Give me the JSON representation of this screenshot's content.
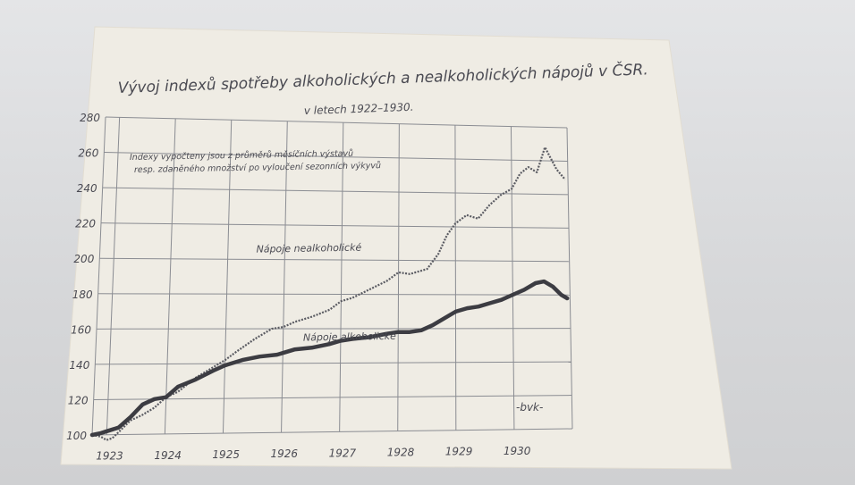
{
  "chart_data": {
    "type": "line",
    "title": "Vývoj indexů spotřeby alkoholických a nealkoholických nápojů v ČSR.",
    "subtitle": "v letech 1922–1930.",
    "note": [
      "Indexy vypočteny jsou z průměrů měsíčních výstavů",
      "resp. zdaněného množství po vyloučení sezonních výkyvů"
    ],
    "signature": "-bvk-",
    "xlabel": "",
    "ylabel": "",
    "x_ticks": [
      "1923",
      "1924",
      "1925",
      "1926",
      "1927",
      "1928",
      "1929",
      "1930"
    ],
    "y_ticks": [
      "100",
      "120",
      "140",
      "160",
      "180",
      "200",
      "220",
      "240",
      "260",
      "280"
    ],
    "xlim": [
      1922.75,
      1931.0
    ],
    "ylim": [
      100,
      280
    ],
    "grid": true,
    "series": [
      {
        "name": "Nápoje nealkoholické",
        "style": "dotted",
        "x": [
          1922.75,
          1922.9,
          1923.0,
          1923.1,
          1923.25,
          1923.4,
          1923.6,
          1923.8,
          1924.0,
          1924.2,
          1924.5,
          1924.8,
          1925.0,
          1925.2,
          1925.5,
          1925.8,
          1926.0,
          1926.2,
          1926.5,
          1926.8,
          1927.0,
          1927.2,
          1927.5,
          1927.8,
          1928.0,
          1928.2,
          1928.5,
          1928.7,
          1928.85,
          1929.0,
          1929.2,
          1929.4,
          1929.6,
          1929.8,
          1930.0,
          1930.15,
          1930.3,
          1930.45,
          1930.6,
          1930.8,
          1930.95
        ],
        "values": [
          100,
          99,
          97,
          98,
          103,
          108,
          111,
          115,
          121,
          124,
          132,
          138,
          142,
          147,
          154,
          160,
          161,
          164,
          167,
          171,
          176,
          178,
          183,
          188,
          193,
          192,
          195,
          204,
          215,
          222,
          227,
          225,
          233,
          239,
          243,
          252,
          256,
          253,
          268,
          255,
          249
        ]
      },
      {
        "name": "Nápoje alkoholické",
        "style": "solid",
        "x": [
          1922.75,
          1922.9,
          1923.0,
          1923.2,
          1923.4,
          1923.6,
          1923.8,
          1924.0,
          1924.2,
          1924.5,
          1924.8,
          1925.0,
          1925.3,
          1925.6,
          1925.9,
          1926.0,
          1926.2,
          1926.5,
          1926.8,
          1927.0,
          1927.2,
          1927.5,
          1927.8,
          1928.0,
          1928.2,
          1928.4,
          1928.6,
          1928.8,
          1929.0,
          1929.2,
          1929.4,
          1929.6,
          1929.8,
          1930.0,
          1930.2,
          1930.4,
          1930.55,
          1930.7,
          1930.85,
          1930.95
        ],
        "values": [
          100,
          101,
          102,
          104,
          110,
          117,
          120,
          121,
          127,
          131,
          136,
          139,
          142,
          144,
          145,
          146,
          148,
          149,
          151,
          153,
          154,
          155,
          157,
          158,
          158,
          159,
          162,
          166,
          170,
          172,
          173,
          175,
          177,
          180,
          183,
          187,
          188,
          185,
          180,
          178
        ]
      }
    ],
    "annotations": [
      {
        "text": "Nápoje nealkoholické",
        "x": 1925.5,
        "y": 204
      },
      {
        "text": "Nápoje alkoholické",
        "x": 1926.35,
        "y": 153
      }
    ]
  }
}
